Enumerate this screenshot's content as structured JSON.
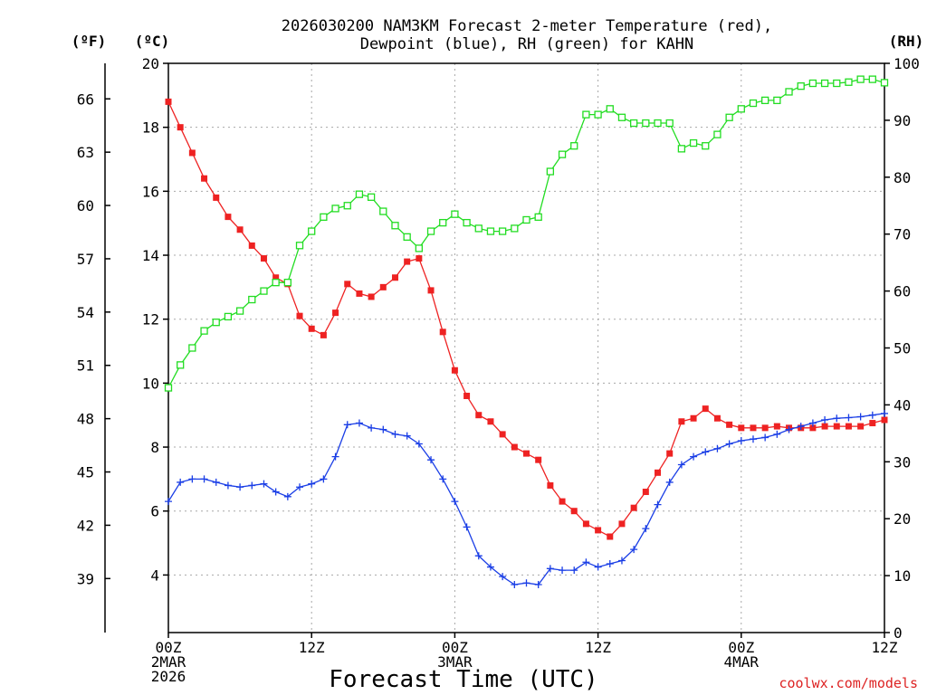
{
  "chart_data": {
    "type": "line",
    "title": [
      "2026030200 NAM3KM Forecast 2-meter Temperature (red),",
      "Dewpoint (blue), RH (green) for KAHN"
    ],
    "xlabel": "Forecast Time (UTC)",
    "credit": "coolwx.com/models",
    "left_outer_unit": "(ºF)",
    "left_inner_unit": "(ºC)",
    "right_unit": "(RH)",
    "xlim": [
      0,
      60
    ],
    "ylim_c": [
      2.2,
      20
    ],
    "ylim_rh": [
      0,
      100
    ],
    "x_ticks": [
      {
        "x": 0,
        "lines": [
          "00Z",
          "2MAR",
          "2026"
        ]
      },
      {
        "x": 12,
        "lines": [
          "12Z"
        ]
      },
      {
        "x": 24,
        "lines": [
          "00Z",
          "3MAR"
        ]
      },
      {
        "x": 36,
        "lines": [
          "12Z"
        ]
      },
      {
        "x": 48,
        "lines": [
          "00Z",
          "4MAR"
        ]
      },
      {
        "x": 60,
        "lines": [
          "12Z"
        ]
      }
    ],
    "y_ticks_c": [
      4,
      6,
      8,
      10,
      12,
      14,
      16,
      18,
      20
    ],
    "y_ticks_f": [
      39,
      42,
      45,
      48,
      51,
      54,
      57,
      60,
      63,
      66
    ],
    "y_ticks_rh": [
      0,
      10,
      20,
      30,
      40,
      50,
      60,
      70,
      80,
      90,
      100
    ],
    "series": [
      {
        "name": "2-meter Temperature",
        "units": "C",
        "color": "#ee2222",
        "marker": "filled-square",
        "x": [
          0,
          1,
          2,
          3,
          4,
          5,
          6,
          7,
          8,
          9,
          10,
          11,
          12,
          13,
          14,
          15,
          16,
          17,
          18,
          19,
          20,
          21,
          22,
          23,
          24,
          25,
          26,
          27,
          28,
          29,
          30,
          31,
          32,
          33,
          34,
          35,
          36,
          37,
          38,
          39,
          40,
          41,
          42,
          43,
          44,
          45,
          46,
          47,
          48,
          49,
          50,
          51,
          52,
          53,
          54,
          55,
          56,
          57,
          58,
          59,
          60
        ],
        "values": [
          18.8,
          18.0,
          17.2,
          16.4,
          15.8,
          15.2,
          14.8,
          14.3,
          13.9,
          13.3,
          13.1,
          12.1,
          11.7,
          11.5,
          12.2,
          13.1,
          12.8,
          12.7,
          13.0,
          13.3,
          13.8,
          13.9,
          12.9,
          11.6,
          10.4,
          9.6,
          9.0,
          8.8,
          8.4,
          8.0,
          7.8,
          7.6,
          6.8,
          6.3,
          6.0,
          5.6,
          5.4,
          5.2,
          5.6,
          6.1,
          6.6,
          7.2,
          7.8,
          8.8,
          8.9,
          9.2,
          8.9,
          8.7,
          8.6,
          8.6,
          8.6,
          8.65,
          8.6,
          8.6,
          8.6,
          8.65,
          8.65,
          8.65,
          8.65,
          8.75,
          8.85
        ]
      },
      {
        "name": "Dewpoint",
        "units": "C",
        "color": "#1a3ee6",
        "marker": "plus",
        "x": [
          0,
          1,
          2,
          3,
          4,
          5,
          6,
          7,
          8,
          9,
          10,
          11,
          12,
          13,
          14,
          15,
          16,
          17,
          18,
          19,
          20,
          21,
          22,
          23,
          24,
          25,
          26,
          27,
          28,
          29,
          30,
          31,
          32,
          33,
          34,
          35,
          36,
          37,
          38,
          39,
          40,
          41,
          42,
          43,
          44,
          45,
          46,
          47,
          48,
          49,
          50,
          51,
          52,
          53,
          54,
          55,
          56,
          57,
          58,
          59,
          60
        ],
        "values": [
          6.3,
          6.9,
          7.0,
          7.0,
          6.9,
          6.8,
          6.75,
          6.8,
          6.85,
          6.6,
          6.45,
          6.75,
          6.85,
          7.0,
          7.7,
          8.7,
          8.75,
          8.6,
          8.55,
          8.4,
          8.35,
          8.1,
          7.6,
          7.0,
          6.3,
          5.5,
          4.6,
          4.25,
          3.95,
          3.7,
          3.75,
          3.7,
          4.2,
          4.15,
          4.15,
          4.4,
          4.25,
          4.35,
          4.45,
          4.8,
          5.45,
          6.2,
          6.9,
          7.45,
          7.7,
          7.85,
          7.95,
          8.1,
          8.2,
          8.25,
          8.3,
          8.4,
          8.55,
          8.65,
          8.75,
          8.85,
          8.9,
          8.92,
          8.95,
          9.0,
          9.05
        ]
      },
      {
        "name": "RH",
        "units": "%",
        "color": "#22dd22",
        "marker": "open-square",
        "x": [
          0,
          1,
          2,
          3,
          4,
          5,
          6,
          7,
          8,
          9,
          10,
          11,
          12,
          13,
          14,
          15,
          16,
          17,
          18,
          19,
          20,
          21,
          22,
          23,
          24,
          25,
          26,
          27,
          28,
          29,
          30,
          31,
          32,
          33,
          34,
          35,
          36,
          37,
          38,
          39,
          40,
          41,
          42,
          43,
          44,
          45,
          46,
          47,
          48,
          49,
          50,
          51,
          52,
          53,
          54,
          55,
          56,
          57,
          58,
          59,
          60
        ],
        "values": [
          43,
          47,
          50,
          53,
          54.5,
          55.5,
          56.5,
          58.5,
          60,
          61.5,
          61.5,
          68,
          70.5,
          73,
          74.5,
          75,
          77,
          76.5,
          74,
          71.5,
          69.5,
          67.5,
          70.5,
          72,
          73.5,
          72,
          71,
          70.5,
          70.5,
          71,
          72.5,
          73,
          81,
          84,
          85.5,
          91,
          91,
          92,
          90.5,
          89.5,
          89.5,
          89.5,
          89.5,
          85,
          86,
          85.5,
          87.5,
          90.5,
          92,
          93,
          93.5,
          93.5,
          95,
          96,
          96.5,
          96.5,
          96.5,
          96.7,
          97.2,
          97.2,
          96.6
        ]
      }
    ]
  }
}
